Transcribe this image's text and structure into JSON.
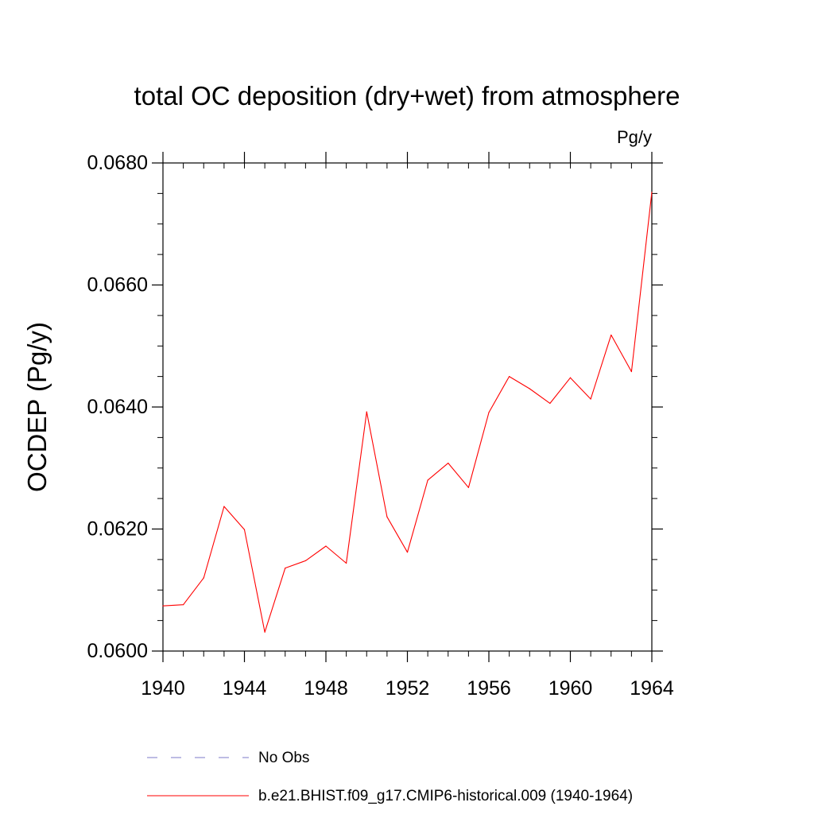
{
  "chart_data": {
    "type": "line",
    "title": "total OC deposition (dry+wet) from atmosphere",
    "units": "Pg/y",
    "ylabel": "OCDEP  (Pg/y)",
    "xlabel": "",
    "xlim": [
      1940,
      1964
    ],
    "ylim": [
      0.06,
      0.068
    ],
    "x_major_ticks": [
      1940,
      1944,
      1948,
      1952,
      1956,
      1960,
      1964
    ],
    "x_tick_labels": [
      "1940",
      "1944",
      "1948",
      "1952",
      "1956",
      "1960",
      "1964"
    ],
    "y_major_ticks": [
      0.06,
      0.062,
      0.064,
      0.066,
      0.068
    ],
    "y_tick_labels": [
      "0.0600",
      "0.0620",
      "0.0640",
      "0.0660",
      "0.0680"
    ],
    "x_minor_step": 1,
    "y_minor_step": 0.0005,
    "grid": false,
    "series": [
      {
        "name": "b.e21.BHIST.f09_g17.CMIP6-historical.009 (1940-1964)",
        "color": "#ff0000",
        "style": "solid",
        "x": [
          1940,
          1941,
          1942,
          1943,
          1944,
          1945,
          1946,
          1947,
          1948,
          1949,
          1950,
          1951,
          1952,
          1953,
          1954,
          1955,
          1956,
          1957,
          1958,
          1959,
          1960,
          1961,
          1962,
          1963,
          1964
        ],
        "values": [
          0.06074,
          0.06076,
          0.0612,
          0.06237,
          0.06199,
          0.06031,
          0.06136,
          0.06148,
          0.06172,
          0.06144,
          0.06392,
          0.0622,
          0.06162,
          0.0628,
          0.06308,
          0.06268,
          0.06391,
          0.0645,
          0.0643,
          0.06406,
          0.06448,
          0.06413,
          0.06518,
          0.06458,
          0.06752
        ]
      }
    ],
    "legend": {
      "placement": "bottom",
      "entries": [
        {
          "label": "No Obs",
          "color": "#7b78c8",
          "style": "dashed"
        },
        {
          "label": "b.e21.BHIST.f09_g17.CMIP6-historical.009 (1940-1964)",
          "color": "#ff0000",
          "style": "solid"
        }
      ]
    }
  }
}
